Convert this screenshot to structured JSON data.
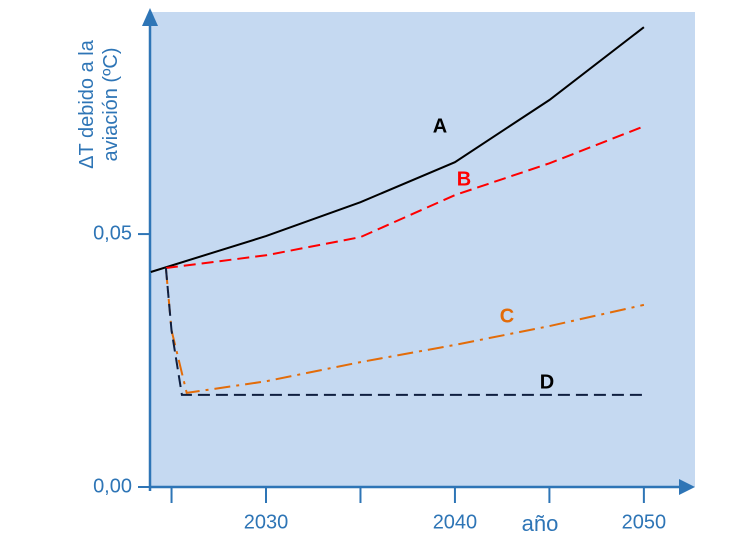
{
  "chart_data": {
    "type": "line",
    "ylabel": [
      "ΔT debido a la",
      "aviación (ºC)"
    ],
    "xlabel": "año",
    "xlim": [
      2023.86,
      2052.6
    ],
    "ylim": [
      0,
      0.0939
    ],
    "xticks": [
      2030,
      2040,
      2050
    ],
    "xminorticks": [
      2025,
      2035,
      2045
    ],
    "yticks": [
      {
        "value": 0,
        "label": "0,00"
      },
      {
        "value": 0.05,
        "label": "0,05"
      }
    ],
    "background": "#c5d9f1",
    "axis_color": "#2e75b6",
    "series": [
      {
        "name": "A",
        "color": "#000000",
        "dash": "solid",
        "x": [
          2023.9,
          2030,
          2035,
          2040,
          2045,
          2050
        ],
        "values": [
          0.0425,
          0.0496,
          0.0563,
          0.0642,
          0.0765,
          0.0909
        ]
      },
      {
        "name": "B",
        "color": "#ff0000",
        "dash": "dashed",
        "x": [
          2024.7,
          2030,
          2035,
          2040,
          2045,
          2050
        ],
        "values": [
          0.0433,
          0.0458,
          0.0494,
          0.0577,
          0.064,
          0.0713
        ]
      },
      {
        "name": "C",
        "color": "#e36c09",
        "dash": "dashdot",
        "x": [
          2024.7,
          2025.0,
          2025.8,
          2030,
          2035,
          2040,
          2045,
          2050
        ],
        "values": [
          0.0433,
          0.031,
          0.0186,
          0.0209,
          0.0247,
          0.0281,
          0.0318,
          0.036
        ]
      },
      {
        "name": "D",
        "color": "#0f1f40",
        "dash": "dashed",
        "x": [
          2024.7,
          2025.0,
          2025.55,
          2050
        ],
        "values": [
          0.0433,
          0.031,
          0.0182,
          0.0182
        ]
      }
    ]
  }
}
